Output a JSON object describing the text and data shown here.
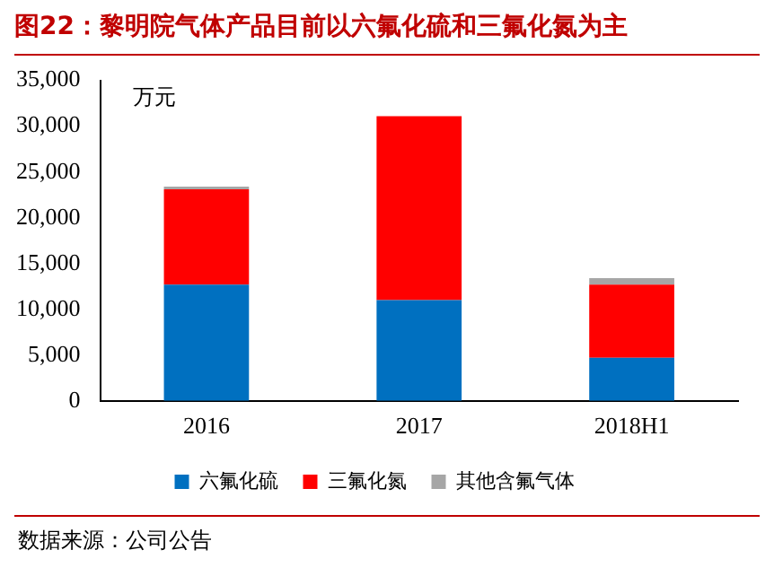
{
  "chart_data": {
    "type": "bar",
    "title": "图22：黎明院气体产品目前以六氟化硫和三氟化氮为主",
    "ylabel": "万元",
    "annotations": [
      "数据来源：公司公告"
    ],
    "categories": [
      "2016",
      "2017",
      "2018H1"
    ],
    "stacked": true,
    "series": [
      {
        "name": "六氟化硫",
        "color": "#0070c0",
        "values": [
          12700,
          11000,
          4700
        ]
      },
      {
        "name": "三氟化氮",
        "color": "#ff0000",
        "values": [
          10400,
          20100,
          8000
        ]
      },
      {
        "name": "其他含氟气体",
        "color": "#a6a6a6",
        "values": [
          300,
          0,
          700
        ]
      }
    ],
    "ylim": [
      0,
      35000
    ],
    "yticks": [
      0,
      {
        "value": 5000,
        "label": "5,000"
      },
      {
        "value": 10000,
        "label": "10,000"
      },
      {
        "value": 15000,
        "label": "15,000"
      },
      {
        "value": 20000,
        "label": "20,000"
      },
      {
        "value": 25000,
        "label": "25,000"
      },
      {
        "value": 30000,
        "label": "30,000"
      },
      {
        "value": 35000,
        "label": "35,000"
      }
    ],
    "grid": false,
    "legend": "bottom"
  }
}
